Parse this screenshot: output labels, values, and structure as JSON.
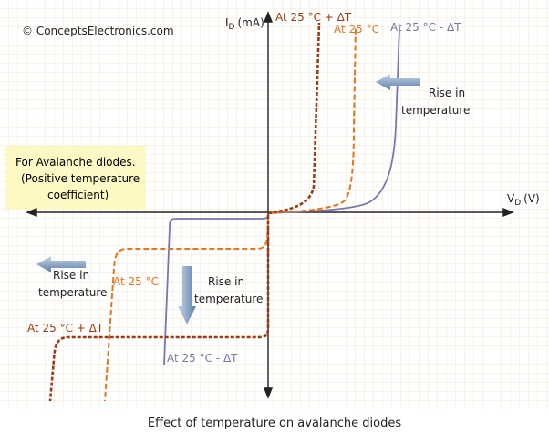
{
  "copyright": "© ConceptsElectronics.com",
  "y_axis": {
    "symbol": "I",
    "subscript": "D",
    "unit": "(mA)"
  },
  "x_axis": {
    "symbol": "V",
    "subscript": "D",
    "unit": "(V)"
  },
  "top_labels": {
    "plus": "At 25 °C + ΔT",
    "nominal": "At 25 °C",
    "minus": "At 25 °C - ΔT"
  },
  "bottom_labels": {
    "nominal": "At 25 °C",
    "plus": "At 25 °C + ΔT",
    "minus": "At 25 °C - ΔT"
  },
  "arrow_notes": {
    "forward": [
      "Rise in",
      "temperature"
    ],
    "reverse": [
      "Rise in",
      "temperature"
    ],
    "down": [
      "Rise in",
      "temperature"
    ]
  },
  "note_box": [
    "For Avalanche diodes.",
    "(Positive temperature",
    "coefficient)"
  ],
  "caption": "Effect of temperature on avalanche diodes"
}
